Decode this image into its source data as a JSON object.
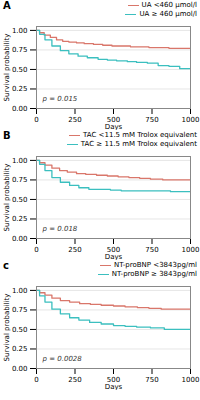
{
  "chart_data": [
    {
      "type": "step",
      "title": "A",
      "xlabel": "Days",
      "ylabel": "Survival probability",
      "annotations": [
        {
          "text": "p = 0.015"
        }
      ],
      "series": [
        {
          "name": "UA <460 μmol/l",
          "color": "#d9766a",
          "x": [
            0,
            20,
            50,
            90,
            130,
            170,
            210,
            260,
            310,
            370,
            430,
            490,
            550,
            610,
            670,
            730,
            790,
            860,
            930,
            1000
          ],
          "values": [
            1.0,
            0.97,
            0.94,
            0.91,
            0.88,
            0.86,
            0.85,
            0.84,
            0.83,
            0.82,
            0.81,
            0.8,
            0.8,
            0.79,
            0.79,
            0.78,
            0.78,
            0.77,
            0.77,
            0.77
          ]
        },
        {
          "name": "UA ≥ 460 μmol/l",
          "color": "#3bbfbf",
          "x": [
            0,
            20,
            55,
            100,
            155,
            210,
            270,
            330,
            400,
            460,
            520,
            590,
            650,
            720,
            790,
            860,
            930,
            1000
          ],
          "values": [
            1.0,
            0.95,
            0.88,
            0.8,
            0.74,
            0.7,
            0.67,
            0.65,
            0.63,
            0.62,
            0.61,
            0.6,
            0.59,
            0.58,
            0.55,
            0.54,
            0.51,
            0.51
          ]
        }
      ],
      "xlim": [
        0,
        1000
      ],
      "ylim": [
        0.0,
        1.05
      ],
      "xticks": [
        0,
        250,
        500,
        750,
        1000
      ],
      "yticks": [
        {
          "value": 0,
          "label": "0.00"
        },
        {
          "value": 0.25,
          "label": "0.25"
        },
        {
          "value": 0.5,
          "label": "0.50"
        },
        {
          "value": 0.75,
          "label": "0.75"
        },
        {
          "value": 1,
          "label": "1.00"
        }
      ],
      "grid": "y",
      "legend": "upper right"
    },
    {
      "type": "step",
      "title": "B",
      "xlabel": "Days",
      "ylabel": "Survival probability",
      "annotations": [
        {
          "text": "p = 0.018"
        }
      ],
      "series": [
        {
          "name": "TAC <11.5 mM Trolox equivalent",
          "color": "#d9766a",
          "x": [
            0,
            20,
            55,
            100,
            150,
            200,
            260,
            320,
            390,
            460,
            530,
            600,
            670,
            740,
            820,
            900,
            1000
          ],
          "values": [
            1.0,
            0.97,
            0.94,
            0.9,
            0.87,
            0.85,
            0.83,
            0.82,
            0.81,
            0.8,
            0.79,
            0.78,
            0.77,
            0.76,
            0.75,
            0.75,
            0.75
          ]
        },
        {
          "name": "TAC ≥ 11.5 mM Trolox equivalent",
          "color": "#3bbfbf",
          "x": [
            0,
            20,
            55,
            100,
            155,
            215,
            275,
            340,
            410,
            480,
            550,
            630,
            700,
            780,
            870,
            960,
            1000
          ],
          "values": [
            1.0,
            0.95,
            0.87,
            0.78,
            0.72,
            0.68,
            0.65,
            0.63,
            0.63,
            0.62,
            0.61,
            0.61,
            0.61,
            0.61,
            0.6,
            0.6,
            0.6
          ]
        }
      ],
      "xlim": [
        0,
        1000
      ],
      "ylim": [
        0.0,
        1.05
      ],
      "xticks": [
        0,
        250,
        500,
        750,
        1000
      ],
      "yticks": [
        {
          "value": 0,
          "label": "0.00"
        },
        {
          "value": 0.25,
          "label": "0.25"
        },
        {
          "value": 0.5,
          "label": "0.50"
        },
        {
          "value": 0.75,
          "label": "0.75"
        },
        {
          "value": 1,
          "label": "1.00"
        }
      ],
      "grid": "y",
      "legend": "upper right"
    },
    {
      "type": "step",
      "title": "c",
      "xlabel": "Days",
      "ylabel": "Survival probability",
      "annotations": [
        {
          "text": "p = 0.0028"
        }
      ],
      "series": [
        {
          "name": "NT-proBNP <3843pg/ml",
          "color": "#d9766a",
          "x": [
            0,
            20,
            55,
            100,
            155,
            215,
            280,
            350,
            420,
            500,
            575,
            655,
            730,
            810,
            890,
            970,
            1000
          ],
          "values": [
            1.0,
            0.97,
            0.94,
            0.9,
            0.87,
            0.85,
            0.83,
            0.82,
            0.81,
            0.8,
            0.79,
            0.78,
            0.77,
            0.76,
            0.76,
            0.76,
            0.76
          ]
        },
        {
          "name": "NT-proBNP ≥ 3843pg/ml",
          "color": "#3bbfbf",
          "x": [
            0,
            20,
            55,
            100,
            155,
            215,
            275,
            345,
            420,
            500,
            575,
            650,
            740,
            830,
            920,
            1000
          ],
          "values": [
            1.0,
            0.93,
            0.85,
            0.76,
            0.7,
            0.65,
            0.62,
            0.59,
            0.57,
            0.55,
            0.54,
            0.53,
            0.52,
            0.5,
            0.5,
            0.5
          ]
        }
      ],
      "xlim": [
        0,
        1000
      ],
      "ylim": [
        0.0,
        1.05
      ],
      "xticks": [
        0,
        250,
        500,
        750,
        1000
      ],
      "yticks": [
        {
          "value": 0,
          "label": "0.00"
        },
        {
          "value": 0.25,
          "label": "0.25"
        },
        {
          "value": 0.5,
          "label": "0.50"
        },
        {
          "value": 0.75,
          "label": "0.75"
        },
        {
          "value": 1,
          "label": "1.00"
        }
      ],
      "grid": "y",
      "legend": "upper right"
    }
  ]
}
